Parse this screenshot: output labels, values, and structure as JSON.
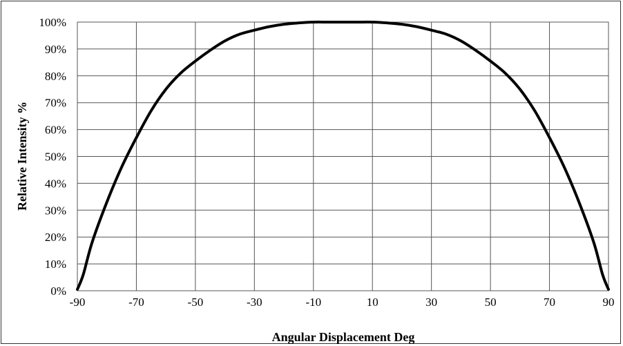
{
  "chart_data": {
    "type": "line",
    "title": "",
    "xlabel": "Angular Displacement Deg",
    "ylabel": "Relative Intensity %",
    "xlim": [
      -90,
      90
    ],
    "ylim": [
      0,
      100
    ],
    "xticks": [
      -90,
      -70,
      -50,
      -30,
      -10,
      10,
      30,
      50,
      70,
      90
    ],
    "xtick_labels": [
      "-90",
      "-70",
      "-50",
      "-30",
      "-10",
      "10",
      "30",
      "50",
      "70",
      "90"
    ],
    "yticks": [
      0,
      10,
      20,
      30,
      40,
      50,
      60,
      70,
      80,
      90,
      100
    ],
    "ytick_labels": [
      "0%",
      "10%",
      "20%",
      "30%",
      "40%",
      "50%",
      "60%",
      "70%",
      "80%",
      "90%",
      "100%"
    ],
    "grid": true,
    "legend": "none",
    "line_color": "#000000",
    "grid_color": "#555555",
    "series": [
      {
        "x": [
          -90,
          -88,
          -85,
          -80,
          -75,
          -70,
          -65,
          -60,
          -55,
          -50,
          -45,
          -40,
          -35,
          -30,
          -25,
          -20,
          -15,
          -10,
          -5,
          0,
          5,
          10,
          15,
          20,
          25,
          30,
          35,
          40,
          45,
          50,
          55,
          60,
          65,
          70,
          75,
          80,
          85,
          88,
          90
        ],
        "y": [
          0.5,
          6,
          18,
          33,
          46,
          57,
          67,
          75,
          81,
          85.5,
          89.5,
          93,
          95.5,
          97,
          98.3,
          99.2,
          99.7,
          100,
          100,
          100,
          100,
          100,
          99.7,
          99.2,
          98.3,
          97,
          95.5,
          93,
          89.5,
          85.5,
          81,
          75,
          67,
          57,
          46,
          33,
          18,
          6,
          0.5
        ]
      }
    ]
  }
}
